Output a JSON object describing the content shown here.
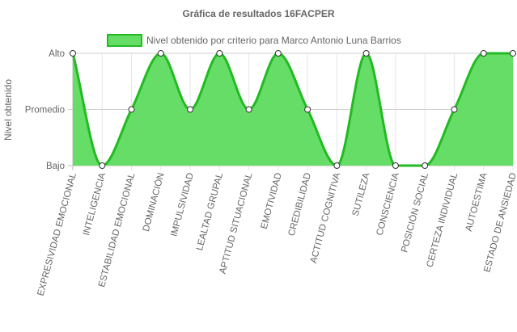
{
  "chart_data": {
    "type": "area",
    "title": "Gráfica de resultados 16FACPER",
    "ylabel": "Nivel obtenido",
    "xlabel": "",
    "y_levels": [
      "Bajo",
      "Promedio",
      "Alto"
    ],
    "ylim": [
      0,
      2
    ],
    "grid": true,
    "legend_position": "top",
    "categories": [
      "EXPRESIVIDAD EMOCIONAL",
      "INTELIGENCIA",
      "ESTABILIDAD EMOCIONAL",
      "DOMINACIÓN",
      "IMPULSIVIDAD",
      "LEALTAD GRUPAL",
      "APTITUD SITUACIONAL",
      "EMOTIVIDAD",
      "CREDIBILIDAD",
      "ACTITUD COGNITIVA",
      "SUTILEZA",
      "CONSCIENCIA",
      "POSICIÓN SOCIAL",
      "CERTEZA INDIVIDUAL",
      "AUTOESTIMA",
      "ESTADO DE ANSIEDAD"
    ],
    "series": [
      {
        "name": "Nivel obtenido por criterio para Marco Antonio Luna Barrios",
        "values": [
          2,
          0,
          1,
          2,
          1,
          2,
          1,
          2,
          1,
          0,
          2,
          0,
          0,
          1,
          2,
          2
        ],
        "fill_color": "#66dd66",
        "line_color": "#22bb22"
      }
    ]
  }
}
